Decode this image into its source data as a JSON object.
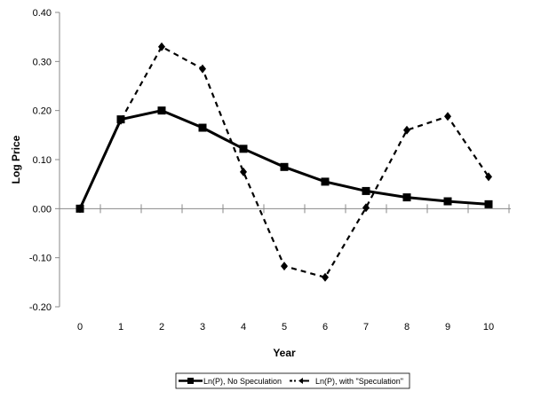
{
  "chart_data": {
    "type": "line",
    "title": "",
    "xlabel": "Year",
    "ylabel": "Log Price",
    "x": [
      0,
      1,
      2,
      3,
      4,
      5,
      6,
      7,
      8,
      9,
      10
    ],
    "ylim": [
      -0.2,
      0.4
    ],
    "yticks": [
      "-0.20",
      "-0.10",
      "0.00",
      "0.10",
      "0.20",
      "0.30",
      "0.40"
    ],
    "ytick_values": [
      -0.2,
      -0.1,
      0,
      0.1,
      0.2,
      0.3,
      0.4
    ],
    "grid": false,
    "legend_position": "bottom",
    "series": [
      {
        "name": "Ln(P), No Speculation",
        "style": "solid-square",
        "color": "#000000",
        "values": [
          0.0,
          0.182,
          0.2,
          0.165,
          0.122,
          0.085,
          0.055,
          0.036,
          0.023,
          0.015,
          0.009
        ]
      },
      {
        "name": "Ln(P), with \"Speculation\"",
        "style": "dashed-diamond",
        "color": "#000000",
        "values": [
          0.0,
          0.18,
          0.33,
          0.285,
          0.075,
          -0.117,
          -0.14,
          0.002,
          0.16,
          0.188,
          0.065
        ]
      }
    ]
  }
}
